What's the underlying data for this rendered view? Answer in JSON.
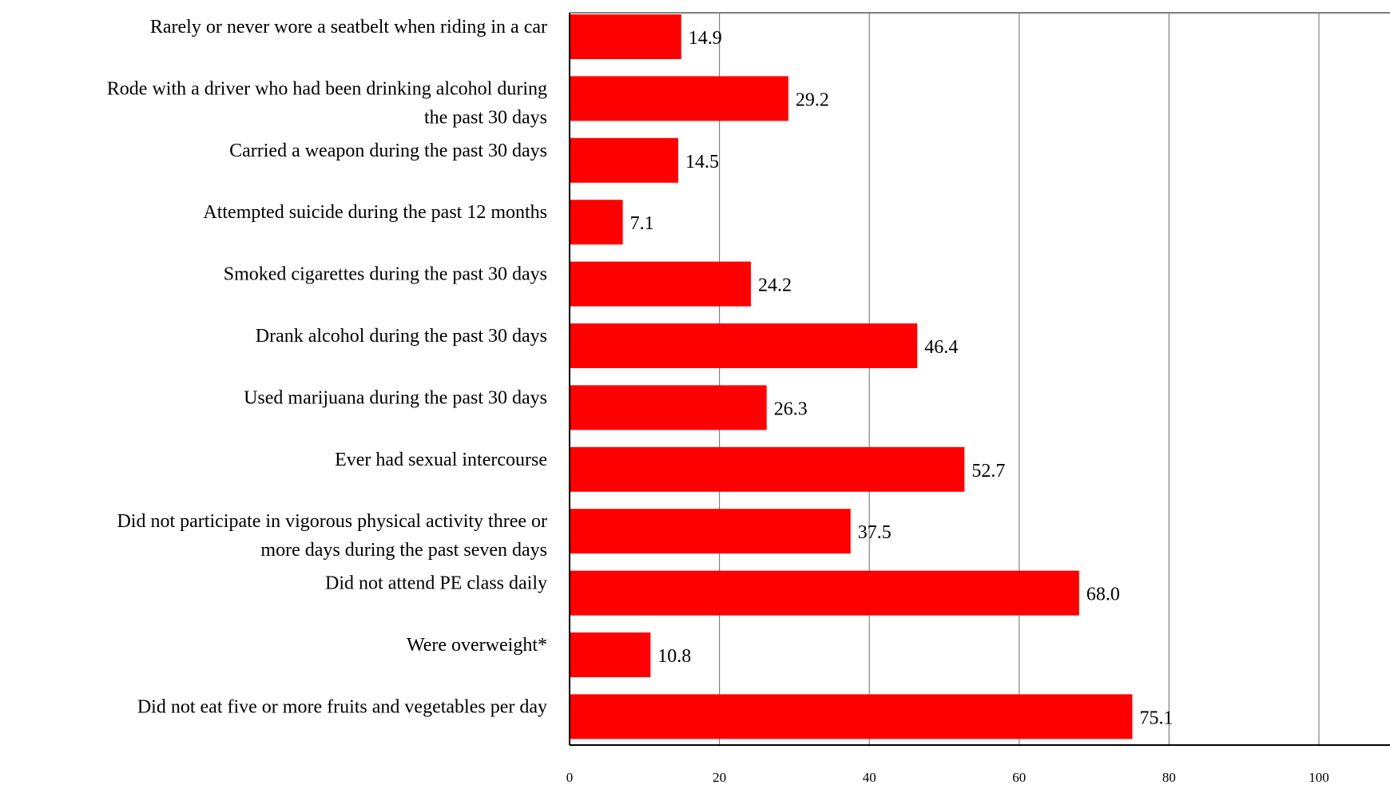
{
  "chart_data": {
    "type": "bar",
    "orientation": "horizontal",
    "title": "",
    "xlabel": "",
    "ylabel": "",
    "categories": [
      [
        "Rarely or never wore a seatbelt when riding in a car"
      ],
      [
        "Rode with a driver who had been drinking alcohol during",
        "the past 30 days"
      ],
      [
        "Carried a weapon during the past 30 days"
      ],
      [
        "Attempted suicide during the past 12 months"
      ],
      [
        "Smoked cigarettes during the past 30 days"
      ],
      [
        "Drank alcohol during the past 30 days"
      ],
      [
        "Used marijuana during the past 30 days"
      ],
      [
        "Ever had sexual intercourse"
      ],
      [
        "Did not participate in vigorous physical activity three or",
        "more days during the past seven days"
      ],
      [
        "Did not attend PE class daily"
      ],
      [
        "Were overweight*"
      ],
      [
        "Did not eat five or more fruits and vegetables per day"
      ]
    ],
    "values": [
      14.9,
      29.2,
      14.5,
      7.1,
      24.2,
      46.4,
      26.3,
      52.7,
      37.5,
      68.0,
      10.8,
      75.1
    ],
    "value_labels": [
      "14.9",
      "29.2",
      "14.5",
      "7.1",
      "24.2",
      "46.4",
      "26.3",
      "52.7",
      "37.5",
      "68.0",
      "10.8",
      "75.1"
    ],
    "xlim": [
      0,
      110
    ],
    "x_ticks": [
      0,
      20,
      40,
      60,
      80,
      100
    ],
    "x_tick_labels": [
      "0",
      "20",
      "40",
      "60",
      "80",
      "100"
    ],
    "grid": true,
    "legend": "none",
    "bar_color": "#ff0000",
    "grid_color": "#808080"
  }
}
